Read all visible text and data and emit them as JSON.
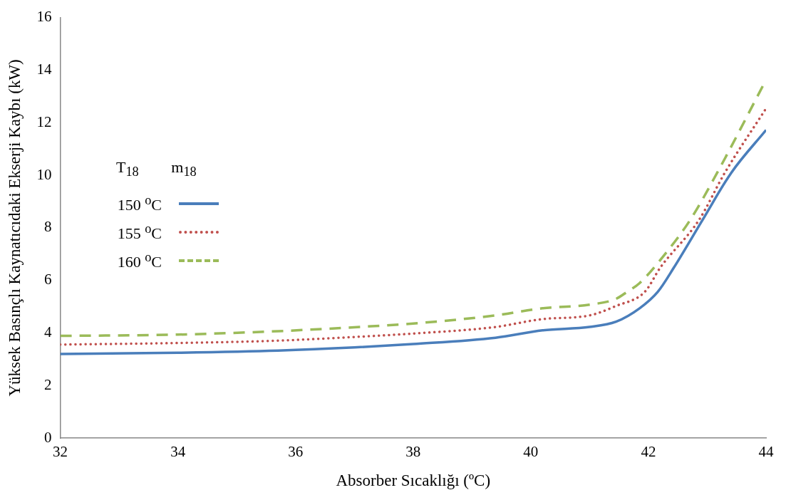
{
  "chart_data": {
    "type": "line",
    "xlabel": "Absorber Sıcaklığı (ºC)",
    "ylabel": "Yüksek Basınçlı Kaynatıcıdaki Ekserji Kaybı (kW)",
    "legend_title": "T$_{18}$ m$_{18}$",
    "legend": "left",
    "grid": false,
    "marker": "none",
    "xlim": [
      32,
      44
    ],
    "xticks": [
      32,
      34,
      36,
      38,
      40,
      42,
      44
    ],
    "ylim": [
      0,
      16
    ],
    "yticks": [
      0,
      2,
      4,
      6,
      8,
      10,
      12,
      14,
      16
    ],
    "series": [
      {
        "name": "150 $^{o}$C",
        "color": "#4a7ebb",
        "line_style": "solid",
        "x": [
          32,
          34,
          35.7,
          37,
          38,
          39.4,
          40.2,
          41,
          41.45,
          41.85,
          42.16,
          42.43,
          42.92,
          43.41,
          44
        ],
        "values": [
          3.2,
          3.25,
          3.33,
          3.45,
          3.58,
          3.82,
          4.1,
          4.23,
          4.43,
          4.94,
          5.57,
          6.48,
          8.3,
          10.1,
          11.72
        ]
      },
      {
        "name": "155 $^{o}$C",
        "color": "#c0504d",
        "line_style": "dotted",
        "x": [
          32,
          34,
          35.7,
          37,
          38,
          39.4,
          40.2,
          41,
          41.45,
          41.94,
          42.2,
          42.86,
          43.3,
          44
        ],
        "values": [
          3.56,
          3.62,
          3.71,
          3.85,
          3.98,
          4.23,
          4.53,
          4.67,
          5.03,
          5.57,
          6.48,
          8.3,
          10.1,
          12.54
        ]
      },
      {
        "name": "160 $^{o}$C",
        "color": "#9bbb59",
        "line_style": "dashed",
        "x": [
          32,
          34,
          35.7,
          37,
          38,
          39.4,
          40.2,
          41,
          41.45,
          41.64,
          41.85,
          42.26,
          42.71,
          43.17,
          44
        ],
        "values": [
          3.89,
          3.94,
          4.07,
          4.22,
          4.36,
          4.67,
          4.94,
          5.08,
          5.3,
          5.57,
          5.9,
          6.94,
          8.3,
          10.1,
          13.63
        ]
      }
    ]
  }
}
